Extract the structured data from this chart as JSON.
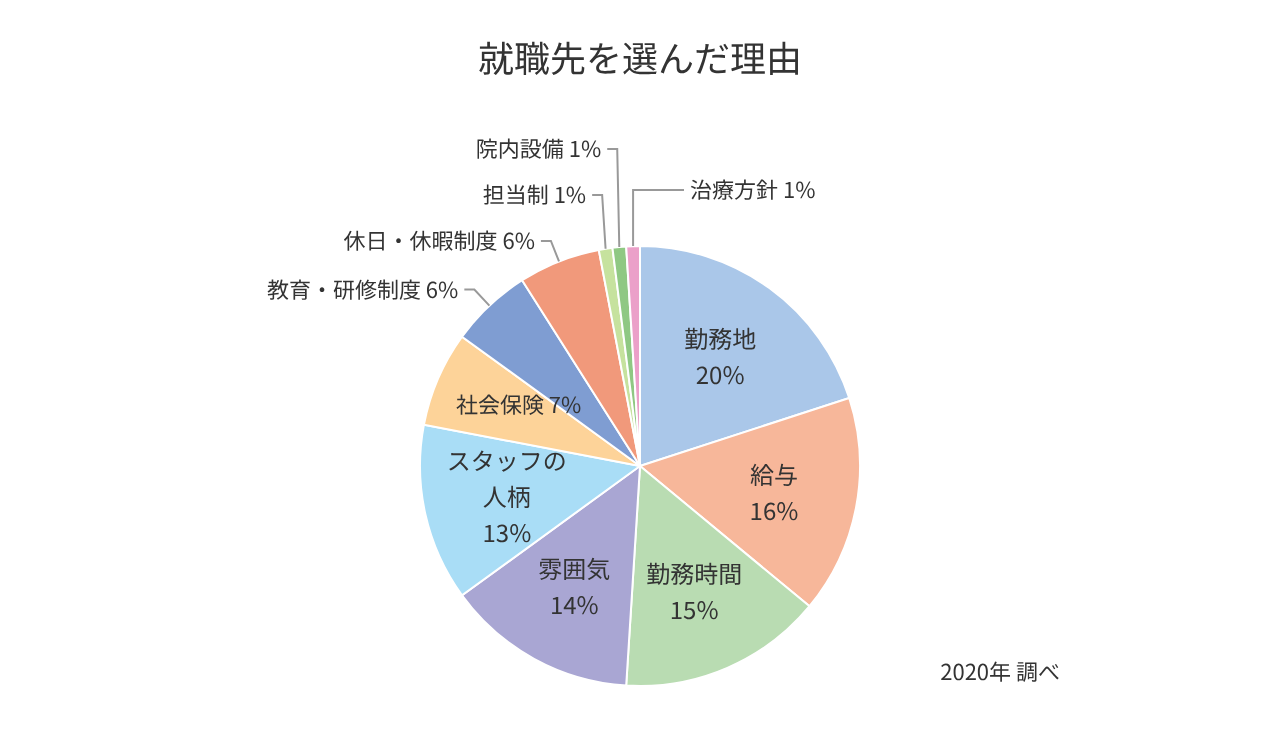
{
  "chart_data": {
    "type": "pie",
    "title": "就職先を選んだ理由",
    "categories": [
      "勤務地",
      "給与",
      "勤務時間",
      "雰囲気",
      "スタッフの人柄",
      "社会保険",
      "教育・研修制度",
      "休日・休暇制度",
      "担当制",
      "院内設備",
      "治療方針"
    ],
    "values": [
      20,
      16,
      15,
      14,
      13,
      7,
      6,
      6,
      1,
      1,
      1
    ],
    "colors": [
      "#aac7e9",
      "#f7b79a",
      "#b9dcb2",
      "#a9a6d3",
      "#a9ddf6",
      "#fdd399",
      "#7f9dd2",
      "#f1997b",
      "#c6e29e",
      "#8fc883",
      "#eba0c9"
    ],
    "value_labels": [
      "20%",
      "16%",
      "15%",
      "14%",
      "13%",
      "7%",
      "6%",
      "6%",
      "1%",
      "1%",
      "1%"
    ],
    "annotations": [
      "2020年 調べ"
    ]
  }
}
